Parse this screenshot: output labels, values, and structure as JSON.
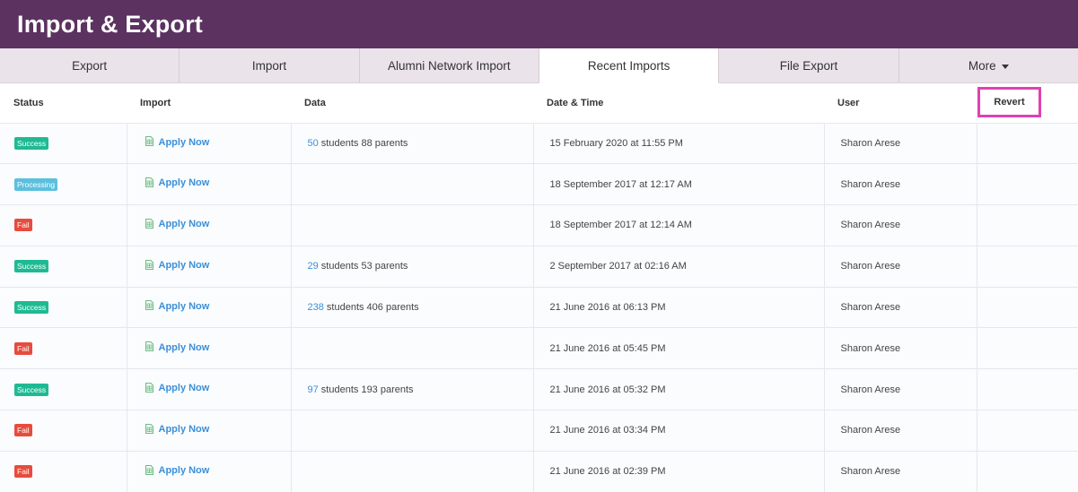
{
  "header": {
    "title": "Import & Export"
  },
  "tabs": [
    {
      "label": "Export",
      "active": false
    },
    {
      "label": "Import",
      "active": false
    },
    {
      "label": "Alumni Network Import",
      "active": false
    },
    {
      "label": "Recent Imports",
      "active": true
    },
    {
      "label": "File Export",
      "active": false
    },
    {
      "label": "More",
      "active": false,
      "dropdown": true
    }
  ],
  "table": {
    "columns": {
      "status": "Status",
      "import": "Import",
      "data": "Data",
      "datetime": "Date & Time",
      "user": "User",
      "revert": "Revert"
    },
    "rows": [
      {
        "status": "Success",
        "status_type": "success",
        "import": "Apply Now",
        "students": "50",
        "data_rest": " students 88 parents",
        "datetime": "15 February 2020 at 11:55 PM",
        "user": "Sharon Arese"
      },
      {
        "status": "Processing",
        "status_type": "processing",
        "import": "Apply Now",
        "students": "",
        "data_rest": "",
        "datetime": "18 September 2017 at 12:17 AM",
        "user": "Sharon Arese"
      },
      {
        "status": "Fail",
        "status_type": "fail",
        "import": "Apply Now",
        "students": "",
        "data_rest": "",
        "datetime": "18 September 2017 at 12:14 AM",
        "user": "Sharon Arese"
      },
      {
        "status": "Success",
        "status_type": "success",
        "import": "Apply Now",
        "students": "29",
        "data_rest": " students 53 parents",
        "datetime": "2 September 2017 at 02:16 AM",
        "user": "Sharon Arese"
      },
      {
        "status": "Success",
        "status_type": "success",
        "import": "Apply Now",
        "students": "238",
        "data_rest": " students 406 parents",
        "datetime": "21 June 2016 at 06:13 PM",
        "user": "Sharon Arese"
      },
      {
        "status": "Fail",
        "status_type": "fail",
        "import": "Apply Now",
        "students": "",
        "data_rest": "",
        "datetime": "21 June 2016 at 05:45 PM",
        "user": "Sharon Arese"
      },
      {
        "status": "Success",
        "status_type": "success",
        "import": "Apply Now",
        "students": "97",
        "data_rest": " students 193 parents",
        "datetime": "21 June 2016 at 05:32 PM",
        "user": "Sharon Arese"
      },
      {
        "status": "Fail",
        "status_type": "fail",
        "import": "Apply Now",
        "students": "",
        "data_rest": "",
        "datetime": "21 June 2016 at 03:34 PM",
        "user": "Sharon Arese"
      },
      {
        "status": "Fail",
        "status_type": "fail",
        "import": "Apply Now",
        "students": "",
        "data_rest": "",
        "datetime": "21 June 2016 at 02:39 PM",
        "user": "Sharon Arese"
      }
    ]
  },
  "icons": {
    "import_file": "spreadsheet-file-icon",
    "more_caret": "chevron-down-icon"
  },
  "colors": {
    "header_bg": "#5b3260",
    "success": "#1fba93",
    "processing": "#5bc0de",
    "fail": "#e74c3c",
    "link": "#3b8fd8",
    "highlight": "#e040b3"
  }
}
